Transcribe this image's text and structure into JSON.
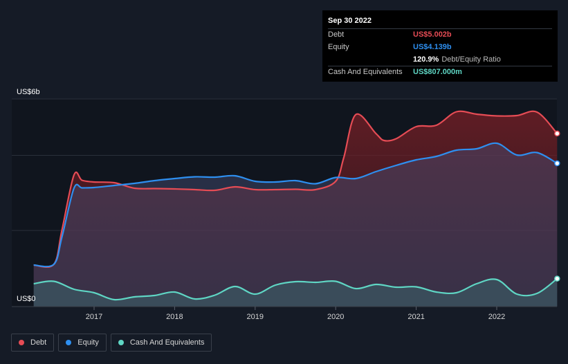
{
  "chart_data": {
    "type": "area",
    "title": "",
    "ylabel": "",
    "y_axis_top_label": "US$6b",
    "y_axis_bottom_label": "US$0",
    "ylim": [
      0,
      6
    ],
    "xlim": [
      2016.25,
      2022.75
    ],
    "x_ticks": [
      2017,
      2018,
      2019,
      2020,
      2021,
      2022
    ],
    "x_tick_labels": [
      "2017",
      "2018",
      "2019",
      "2020",
      "2021",
      "2022"
    ],
    "grid": true,
    "legend_position": "bottom-left",
    "series": [
      {
        "name": "Debt",
        "color": "#e64c55",
        "x": [
          2016.25,
          2016.5,
          2016.6,
          2016.75,
          2016.85,
          2017.0,
          2017.25,
          2017.5,
          2017.75,
          2018.0,
          2018.25,
          2018.5,
          2018.75,
          2019.0,
          2019.25,
          2019.5,
          2019.75,
          2020.0,
          2020.1,
          2020.25,
          2020.5,
          2020.6,
          2020.75,
          2021.0,
          2021.25,
          2021.5,
          2021.75,
          2022.0,
          2022.25,
          2022.5,
          2022.75
        ],
        "values": [
          1.2,
          1.22,
          2.2,
          3.8,
          3.65,
          3.6,
          3.58,
          3.42,
          3.41,
          3.4,
          3.38,
          3.36,
          3.46,
          3.38,
          3.38,
          3.39,
          3.38,
          3.62,
          4.3,
          5.55,
          5.0,
          4.8,
          4.85,
          5.2,
          5.24,
          5.63,
          5.56,
          5.51,
          5.52,
          5.62,
          5.002
        ]
      },
      {
        "name": "Equity",
        "color": "#2e8ff0",
        "x": [
          2016.25,
          2016.5,
          2016.6,
          2016.75,
          2016.85,
          2017.0,
          2017.25,
          2017.5,
          2017.75,
          2018.0,
          2018.25,
          2018.5,
          2018.75,
          2019.0,
          2019.25,
          2019.5,
          2019.75,
          2020.0,
          2020.25,
          2020.5,
          2020.75,
          2021.0,
          2021.25,
          2021.5,
          2021.75,
          2022.0,
          2022.25,
          2022.5,
          2022.75
        ],
        "values": [
          1.2,
          1.22,
          2.0,
          3.42,
          3.43,
          3.44,
          3.5,
          3.56,
          3.64,
          3.7,
          3.75,
          3.74,
          3.78,
          3.62,
          3.6,
          3.64,
          3.55,
          3.73,
          3.7,
          3.9,
          4.08,
          4.24,
          4.34,
          4.52,
          4.56,
          4.72,
          4.38,
          4.45,
          4.139
        ]
      },
      {
        "name": "Cash And Equivalents",
        "color": "#5fd6c4",
        "x": [
          2016.25,
          2016.5,
          2016.75,
          2017.0,
          2017.25,
          2017.5,
          2017.75,
          2018.0,
          2018.25,
          2018.5,
          2018.75,
          2019.0,
          2019.25,
          2019.5,
          2019.75,
          2020.0,
          2020.25,
          2020.5,
          2020.75,
          2021.0,
          2021.25,
          2021.5,
          2021.75,
          2022.0,
          2022.25,
          2022.5,
          2022.75
        ],
        "values": [
          0.66,
          0.73,
          0.5,
          0.4,
          0.2,
          0.28,
          0.32,
          0.42,
          0.22,
          0.33,
          0.58,
          0.36,
          0.62,
          0.72,
          0.7,
          0.73,
          0.52,
          0.64,
          0.56,
          0.57,
          0.42,
          0.4,
          0.66,
          0.78,
          0.36,
          0.38,
          0.807
        ]
      }
    ]
  },
  "tooltip": {
    "date": "Sep 30 2022",
    "rows": [
      {
        "label": "Debt",
        "value": "US$5.002b",
        "color": "#e64c55"
      },
      {
        "label": "Equity",
        "value": "US$4.139b",
        "color": "#2e8ff0"
      },
      {
        "label": "",
        "ratio": "120.9%",
        "ratio_label": "Debt/Equity Ratio"
      },
      {
        "label": "Cash And Equivalents",
        "value": "US$807.000m",
        "color": "#5fd6c4"
      }
    ]
  },
  "legend": [
    {
      "label": "Debt",
      "color": "#e64c55"
    },
    {
      "label": "Equity",
      "color": "#2e8ff0"
    },
    {
      "label": "Cash And Equivalents",
      "color": "#5fd6c4"
    }
  ]
}
